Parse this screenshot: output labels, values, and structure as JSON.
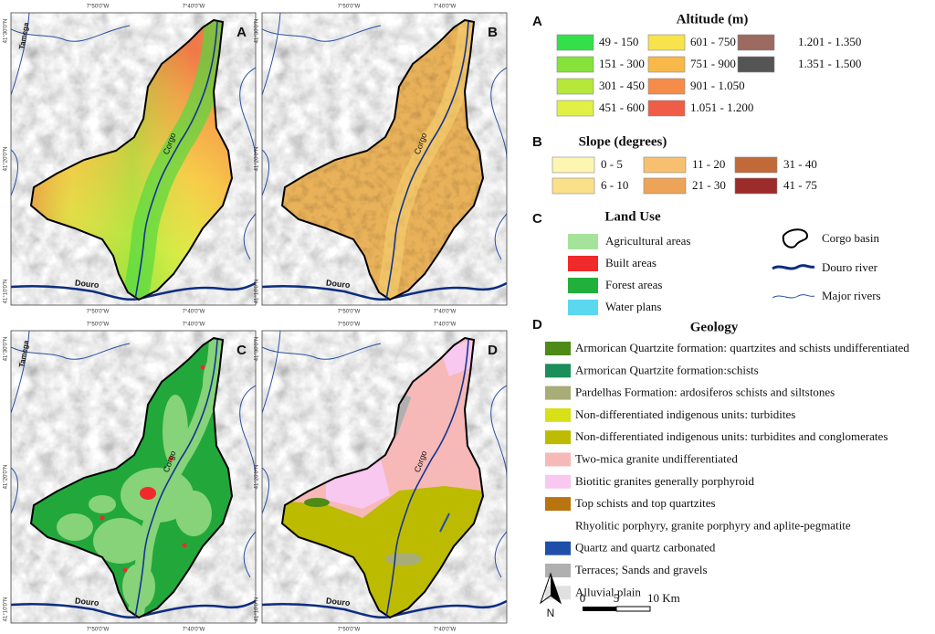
{
  "maps": {
    "panels": [
      "A",
      "B",
      "C",
      "D"
    ],
    "longitudes": [
      "7°50'0\"W",
      "7°40'0\"W"
    ],
    "latitudes": [
      "41°30'0\"N",
      "41°20'0\"N",
      "41°10'0\"N"
    ],
    "rivers": {
      "main": "Corgo",
      "douro": "Douro",
      "tamega": "Tamega"
    }
  },
  "legend": {
    "altitude": {
      "letter": "A",
      "title": "Altitude (m)",
      "items": [
        {
          "label": "49 - 150",
          "color": "#33e04a"
        },
        {
          "label": "151 - 300",
          "color": "#86e23a"
        },
        {
          "label": "301 - 450",
          "color": "#b6e83c"
        },
        {
          "label": "451 - 600",
          "color": "#e2f046"
        },
        {
          "label": "601 - 750",
          "color": "#f7e34c"
        },
        {
          "label": "751 - 900",
          "color": "#f8b84a"
        },
        {
          "label": "901 - 1.050",
          "color": "#f58c4a"
        },
        {
          "label": "1.051 - 1.200",
          "color": "#ef5d47"
        },
        {
          "label": "1.201 - 1.350",
          "color": "#9c6a60"
        },
        {
          "label": "1.351 - 1.500",
          "color": "#555555"
        }
      ]
    },
    "slope": {
      "letter": "B",
      "title": "Slope (degrees)",
      "items": [
        {
          "label": "0 - 5",
          "color": "#fdf6b0"
        },
        {
          "label": "6 - 10",
          "color": "#fbe08a"
        },
        {
          "label": "11 - 20",
          "color": "#f7c070"
        },
        {
          "label": "21 - 30",
          "color": "#eea458"
        },
        {
          "label": "31 - 40",
          "color": "#c2693a"
        },
        {
          "label": "41 - 75",
          "color": "#9b2c2a"
        }
      ]
    },
    "land_use": {
      "letter": "C",
      "title": "Land Use",
      "items": [
        {
          "label": "Agricultural areas",
          "color": "#a6e39a"
        },
        {
          "label": "Built areas",
          "color": "#f02a2a"
        },
        {
          "label": "Forest areas",
          "color": "#22b03c"
        },
        {
          "label": "Water plans",
          "color": "#5ad8f0"
        }
      ],
      "symbols": [
        "Corgo basin",
        "Douro river",
        "Major rivers"
      ]
    },
    "geology": {
      "letter": "D",
      "title": "Geology",
      "items": [
        {
          "label": "Armorican Quartzite formation: quartzites and schists undifferentiated",
          "color": "#4d8a16"
        },
        {
          "label": "Armorican Quartzite formation:schists",
          "color": "#1b8e5a"
        },
        {
          "label": "Pardelhas Formation: ardosiferos schists and siltstones",
          "color": "#a8ad77"
        },
        {
          "label": "Non-differentiated indigenous units: turbidites",
          "color": "#d8e018"
        },
        {
          "label": "Non-differentiated indigenous units: turbidites and conglomerates",
          "color": "#bcbb00"
        },
        {
          "label": "Two-mica granite undifferentiated",
          "color": "#f7b8b8"
        },
        {
          "label": "Biotitic granites generally porphyroid",
          "color": "#f8c8f0"
        },
        {
          "label": "Top schists and top quartzites",
          "color": "#b8740f"
        },
        {
          "label": "Rhyolitic porphyry, granite porphyry and aplite-pegmatite",
          "color": "#ffffff"
        },
        {
          "label": "Quartz and quartz carbonated",
          "color": "#1f4fa8"
        },
        {
          "label": "Terraces; Sands and gravels",
          "color": "#b0b0b0"
        },
        {
          "label": "Alluvial plain",
          "color": "#e0e0e0"
        }
      ]
    },
    "north": "N",
    "scale": [
      "0",
      "5",
      "10 Km"
    ]
  }
}
